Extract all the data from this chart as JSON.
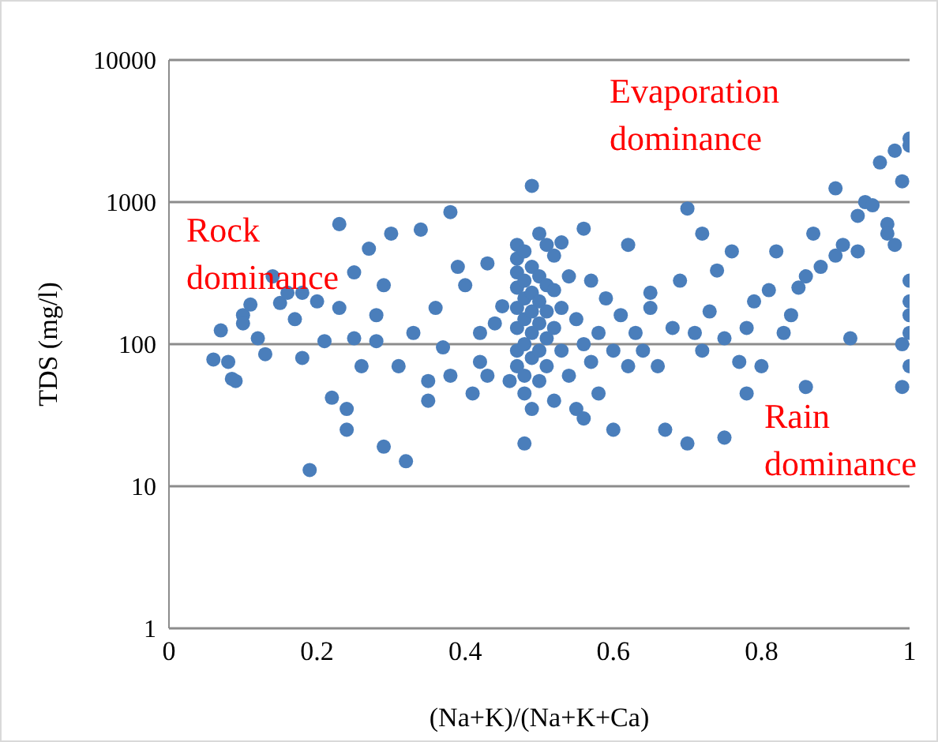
{
  "chart_data": {
    "type": "scatter",
    "xlabel": "(Na+K)/(Na+K+Ca)",
    "ylabel": "TDS (mg/l)",
    "log": "y",
    "grid": "y",
    "marker": "circle",
    "xlim": [
      0,
      1
    ],
    "xticks": [
      0,
      0.2,
      0.4,
      0.6,
      0.8,
      1
    ],
    "ylim": [
      1,
      10000
    ],
    "yticks": [
      1,
      10,
      100,
      1000,
      10000
    ],
    "annotations": [
      "Evaporation dominance",
      "Rock dominance",
      "Rain dominance"
    ],
    "series": [
      {
        "color": "#4a7ebb",
        "x": [
          0.06,
          0.07,
          0.08,
          0.085,
          0.09,
          0.1,
          0.1,
          0.11,
          0.12,
          0.13,
          0.14,
          0.15,
          0.16,
          0.17,
          0.18,
          0.18,
          0.19,
          0.2,
          0.21,
          0.22,
          0.23,
          0.23,
          0.24,
          0.24,
          0.25,
          0.25,
          0.26,
          0.27,
          0.28,
          0.28,
          0.29,
          0.29,
          0.3,
          0.31,
          0.32,
          0.33,
          0.34,
          0.35,
          0.35,
          0.36,
          0.37,
          0.38,
          0.38,
          0.39,
          0.4,
          0.41,
          0.42,
          0.42,
          0.43,
          0.43,
          0.44,
          0.45,
          0.46,
          0.47,
          0.47,
          0.47,
          0.47,
          0.47,
          0.47,
          0.47,
          0.47,
          0.48,
          0.48,
          0.48,
          0.48,
          0.48,
          0.48,
          0.48,
          0.48,
          0.49,
          0.49,
          0.49,
          0.49,
          0.49,
          0.49,
          0.49,
          0.5,
          0.5,
          0.5,
          0.5,
          0.5,
          0.5,
          0.51,
          0.51,
          0.51,
          0.51,
          0.51,
          0.52,
          0.52,
          0.52,
          0.52,
          0.53,
          0.53,
          0.53,
          0.54,
          0.54,
          0.55,
          0.55,
          0.56,
          0.56,
          0.56,
          0.57,
          0.57,
          0.58,
          0.58,
          0.59,
          0.6,
          0.6,
          0.61,
          0.62,
          0.62,
          0.63,
          0.64,
          0.65,
          0.65,
          0.66,
          0.67,
          0.68,
          0.69,
          0.7,
          0.7,
          0.71,
          0.72,
          0.72,
          0.73,
          0.74,
          0.75,
          0.75,
          0.76,
          0.77,
          0.78,
          0.78,
          0.79,
          0.8,
          0.81,
          0.82,
          0.83,
          0.84,
          0.85,
          0.86,
          0.86,
          0.87,
          0.88,
          0.9,
          0.9,
          0.91,
          0.92,
          0.93,
          0.93,
          0.94,
          0.95,
          0.96,
          0.97,
          0.97,
          0.98,
          0.98,
          0.99,
          0.99,
          0.99,
          1,
          1,
          1,
          1,
          1,
          1,
          1
        ],
        "values": [
          78,
          125,
          75,
          57,
          55,
          160,
          140,
          190,
          110,
          85,
          300,
          195,
          230,
          150,
          80,
          230,
          13,
          200,
          105,
          42,
          700,
          180,
          25,
          35,
          320,
          110,
          70,
          470,
          160,
          105,
          19,
          260,
          600,
          70,
          15,
          120,
          640,
          40,
          55,
          180,
          95,
          850,
          60,
          350,
          260,
          45,
          120,
          75,
          370,
          60,
          140,
          185,
          55,
          500,
          400,
          320,
          250,
          180,
          130,
          90,
          70,
          450,
          280,
          210,
          150,
          100,
          60,
          45,
          20,
          1300,
          350,
          230,
          170,
          120,
          80,
          35,
          600,
          300,
          200,
          140,
          90,
          55,
          500,
          260,
          170,
          110,
          70,
          420,
          240,
          130,
          40,
          520,
          180,
          90,
          300,
          60,
          150,
          35,
          650,
          100,
          30,
          280,
          75,
          120,
          45,
          210,
          90,
          25,
          160,
          500,
          70,
          120,
          90,
          230,
          180,
          70,
          25,
          130,
          280,
          900,
          20,
          120,
          600,
          90,
          170,
          330,
          110,
          22,
          450,
          75,
          130,
          45,
          200,
          70,
          240,
          450,
          120,
          160,
          250,
          300,
          50,
          600,
          350,
          1250,
          420,
          500,
          110,
          450,
          800,
          1000,
          950,
          1900,
          700,
          600,
          2300,
          500,
          1400,
          100,
          50,
          2800,
          2500,
          280,
          200,
          160,
          120,
          70
        ]
      }
    ]
  }
}
